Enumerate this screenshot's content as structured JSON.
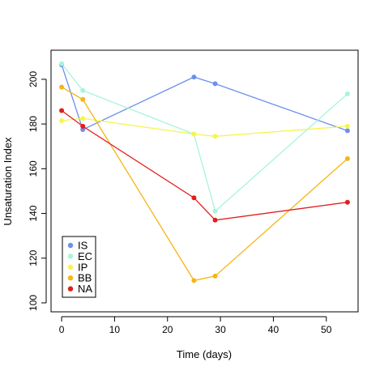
{
  "chart_data": {
    "type": "line",
    "title": "",
    "xlabel": "Time (days)",
    "ylabel": "Unsaturation Index",
    "xlim": [
      -2,
      56
    ],
    "ylim": [
      96,
      213
    ],
    "xticks": [
      0,
      10,
      20,
      30,
      40,
      50
    ],
    "yticks": [
      100,
      120,
      140,
      160,
      180,
      200
    ],
    "grid": false,
    "legend_position": "bottom-left",
    "x": [
      0,
      4,
      25,
      29,
      54
    ],
    "series": [
      {
        "name": "IS",
        "color": "#6c8ff0",
        "values": [
          206.5,
          177.5,
          201,
          198,
          177
        ]
      },
      {
        "name": "EC",
        "color": "#a6f5d8",
        "values": [
          207,
          195,
          175.5,
          141,
          193.5
        ]
      },
      {
        "name": "IP",
        "color": "#f5f550",
        "values": [
          181.5,
          182.5,
          175.5,
          174.5,
          179
        ]
      },
      {
        "name": "BB",
        "color": "#f5b514",
        "values": [
          196.5,
          191,
          110,
          112,
          164.5
        ]
      },
      {
        "name": "NA",
        "color": "#e01e1e",
        "values": [
          186,
          179,
          147,
          137,
          145
        ]
      }
    ]
  }
}
